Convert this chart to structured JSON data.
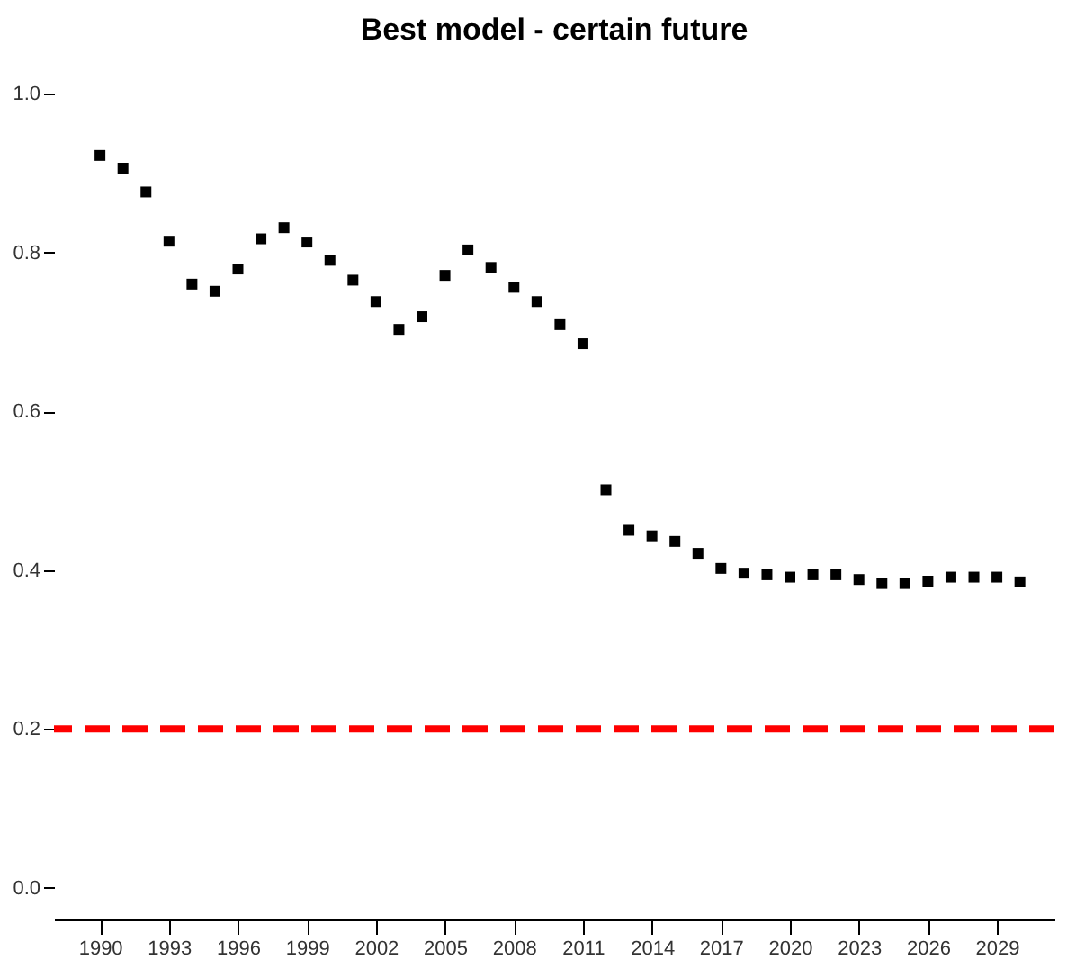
{
  "chart_data": {
    "type": "scatter",
    "title": "Best model - certain future",
    "x": [
      1990,
      1991,
      1992,
      1993,
      1994,
      1995,
      1996,
      1997,
      1998,
      1999,
      2000,
      2001,
      2002,
      2003,
      2004,
      2005,
      2006,
      2007,
      2008,
      2009,
      2010,
      2011,
      2012,
      2013,
      2014,
      2015,
      2016,
      2017,
      2018,
      2019,
      2020,
      2021,
      2022,
      2023,
      2024,
      2025,
      2026,
      2027,
      2028,
      2029,
      2030
    ],
    "series": [
      {
        "color": "#000000",
        "values": [
          0.922,
          0.906,
          0.876,
          0.814,
          0.76,
          0.751,
          0.779,
          0.817,
          0.831,
          0.813,
          0.79,
          0.765,
          0.738,
          0.703,
          0.719,
          0.771,
          0.803,
          0.781,
          0.756,
          0.738,
          0.709,
          0.685,
          0.501,
          0.45,
          0.443,
          0.436,
          0.421,
          0.402,
          0.396,
          0.394,
          0.391,
          0.394,
          0.394,
          0.388,
          0.383,
          0.383,
          0.386,
          0.391,
          0.391,
          0.391,
          0.385
        ]
      }
    ],
    "xlim": [
      1988,
      2031.5
    ],
    "xticks": [
      1990,
      1993,
      1996,
      1999,
      2002,
      2005,
      2008,
      2011,
      2014,
      2017,
      2020,
      2023,
      2026,
      2029
    ],
    "ylim": [
      -0.04,
      1
    ],
    "yticks": [
      {
        "value": 0,
        "label": "0.0"
      },
      0.2,
      0.4,
      0.6,
      0.8,
      {
        "value": 1,
        "label": "1.0"
      }
    ],
    "ref_lines": [
      {
        "axis": "y",
        "value": 0.2,
        "color": "#ff0000",
        "line_style": "dashed"
      }
    ],
    "grid": false,
    "marker": "square"
  }
}
